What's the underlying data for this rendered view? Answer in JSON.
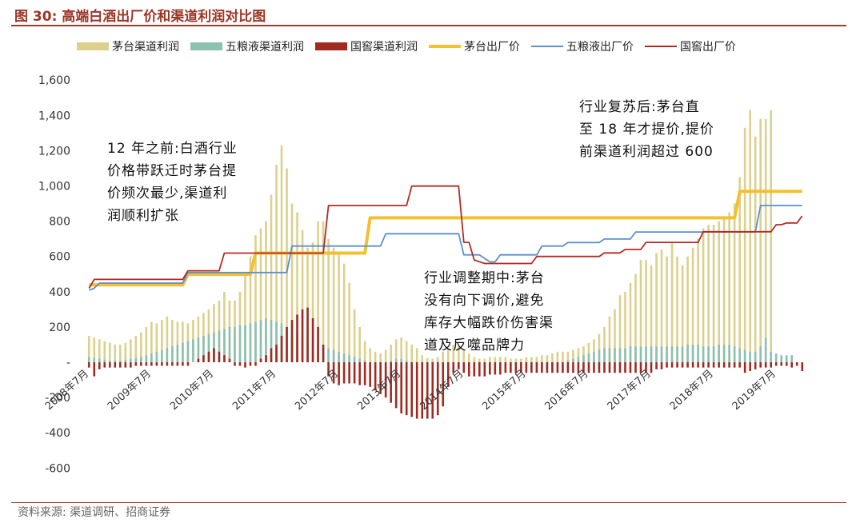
{
  "title": "图 30:  高端白酒出厂价和渠道利润对比图",
  "source": "资料来源:  渠道调研、招商证券",
  "colors": {
    "moutai_profit": "#dcd08d",
    "wuliangye_profit": "#8cc0b0",
    "guojiao_profit": "#a02a20",
    "moutai_price": "#f4c030",
    "wuliangye_price": "#5b8fd1",
    "guojiao_price": "#b42b23"
  },
  "annotations": [
    {
      "lines": [
        "12 年之前:白酒行业",
        "价格带跃迁时茅台提",
        "价频次最少,渠道利",
        "润顺利扩张"
      ]
    },
    {
      "lines": [
        "行业复苏后:茅台直",
        "至 18 年才提价,提价",
        "前渠道利润超过 600"
      ]
    },
    {
      "lines": [
        "行业调整期中:茅台",
        "没有向下调价,避免",
        "库存大幅跌价伤害渠",
        "道及反噬品牌力"
      ]
    }
  ],
  "chart_data": {
    "type": "bar+line",
    "ylim": [
      -600,
      1600
    ],
    "yticks": [
      -600,
      -400,
      -200,
      0,
      200,
      400,
      600,
      800,
      1000,
      1200,
      1400,
      1600
    ],
    "ytick_labels": [
      "-600",
      "-400",
      "-200",
      "-",
      "200",
      "400",
      "600",
      "800",
      "1,000",
      "1,200",
      "1,400",
      "1,600"
    ],
    "x_start": "2008-07",
    "x_end": "2019-12",
    "xtick_labels": [
      "2008年7月",
      "2009年7月",
      "2010年7月",
      "2011年7月",
      "2012年7月",
      "2013年7月",
      "2014年7月",
      "2015年7月",
      "2016年7月",
      "2017年7月",
      "2018年7月",
      "2019年7月"
    ],
    "legend": [
      "茅台渠道利润",
      "五粮液渠道利润",
      "国窖渠道利润",
      "茅台出厂价",
      "五粮液出厂价",
      "国窖出厂价"
    ],
    "series": [
      {
        "name": "茅台渠道利润",
        "kind": "bar",
        "values": [
          150,
          140,
          130,
          120,
          110,
          100,
          100,
          110,
          130,
          150,
          170,
          200,
          230,
          220,
          240,
          260,
          240,
          230,
          230,
          220,
          240,
          260,
          280,
          300,
          330,
          350,
          400,
          350,
          350,
          400,
          500,
          600,
          720,
          760,
          800,
          950,
          1120,
          1230,
          1100,
          900,
          850,
          750,
          650,
          680,
          800,
          800,
          700,
          650,
          620,
          560,
          450,
          300,
          200,
          120,
          80,
          60,
          50,
          70,
          100,
          130,
          140,
          120,
          100,
          80,
          40,
          25,
          20,
          30,
          60,
          80,
          100,
          90,
          70,
          50,
          30,
          20,
          20,
          30,
          30,
          30,
          30,
          20,
          20,
          20,
          30,
          30,
          30,
          40,
          40,
          50,
          60,
          60,
          60,
          70,
          80,
          90,
          110,
          130,
          160,
          200,
          260,
          300,
          380,
          400,
          450,
          500,
          580,
          580,
          550,
          620,
          640,
          600,
          680,
          600,
          550,
          600,
          650,
          700,
          760,
          780,
          780,
          800,
          820,
          850,
          900,
          1050,
          1330,
          1430,
          1280,
          1380,
          1380,
          1430
        ]
      },
      {
        "name": "五粮液渠道利润",
        "kind": "bar",
        "values": [
          30,
          25,
          20,
          15,
          10,
          10,
          10,
          15,
          20,
          25,
          30,
          40,
          50,
          60,
          70,
          80,
          90,
          100,
          110,
          120,
          130,
          140,
          150,
          160,
          170,
          180,
          190,
          200,
          200,
          210,
          210,
          220,
          230,
          240,
          250,
          240,
          230,
          220,
          200,
          180,
          160,
          140,
          120,
          110,
          100,
          90,
          80,
          70,
          60,
          50,
          40,
          30,
          20,
          10,
          0,
          -10,
          -10,
          0,
          10,
          20,
          20,
          10,
          0,
          -10,
          -20,
          -20,
          -10,
          0,
          -10,
          -20,
          -30,
          -20,
          -10,
          0,
          -10,
          -10,
          -10,
          -10,
          -10,
          -10,
          -10,
          -10,
          -10,
          -10,
          -10,
          -10,
          -10,
          -10,
          -40,
          -10,
          -10,
          0,
          10,
          20,
          30,
          40,
          50,
          60,
          70,
          80,
          80,
          80,
          80,
          80,
          90,
          90,
          90,
          90,
          90,
          90,
          90,
          90,
          90,
          90,
          90,
          100,
          100,
          100,
          90,
          90,
          90,
          100,
          100,
          100,
          90,
          80,
          70,
          60,
          60,
          90,
          140,
          60,
          50,
          40,
          40,
          40
        ]
      },
      {
        "name": "国窖渠道利润",
        "kind": "bar",
        "values": [
          -30,
          -80,
          -40,
          -30,
          -30,
          -30,
          -30,
          -30,
          -30,
          -20,
          -20,
          -20,
          -20,
          -20,
          -20,
          -20,
          -20,
          -20,
          -20,
          -20,
          0,
          20,
          40,
          60,
          80,
          60,
          40,
          20,
          -20,
          -20,
          -30,
          -20,
          -20,
          20,
          40,
          80,
          100,
          150,
          200,
          240,
          270,
          300,
          310,
          250,
          200,
          100,
          -80,
          -120,
          -130,
          -120,
          -120,
          -120,
          -130,
          -130,
          -140,
          -160,
          -180,
          -200,
          -230,
          -260,
          -290,
          -300,
          -310,
          -320,
          -320,
          -320,
          -320,
          -300,
          -250,
          -140,
          -60,
          -40,
          -60,
          -80,
          -80,
          -80,
          -80,
          -70,
          -70,
          -70,
          -60,
          -60,
          -60,
          -60,
          -60,
          -60,
          -60,
          -60,
          -60,
          -60,
          -60,
          -60,
          -60,
          -60,
          -60,
          -60,
          -60,
          -60,
          -60,
          -60,
          -60,
          -60,
          -60,
          -60,
          -60,
          -60,
          -60,
          -60,
          -60,
          -40,
          -40,
          -30,
          -30,
          -30,
          -30,
          -30,
          -30,
          -30,
          -30,
          -30,
          -30,
          -30,
          -30,
          -30,
          -30,
          -30,
          -60,
          -50,
          -40,
          -30,
          -30,
          -30,
          -20,
          -20,
          -20,
          -30,
          -20,
          -50
        ]
      },
      {
        "name": "茅台出厂价",
        "kind": "line",
        "points": [
          [
            0,
            439
          ],
          [
            18,
            439
          ],
          [
            19,
            499
          ],
          [
            31,
            499
          ],
          [
            32,
            619
          ],
          [
            53,
            619
          ],
          [
            54,
            819
          ],
          [
            124,
            819
          ],
          [
            125,
            969
          ],
          [
            137,
            969
          ]
        ]
      },
      {
        "name": "五粮液出厂价",
        "kind": "line",
        "points": [
          [
            0,
            409
          ],
          [
            1,
            420
          ],
          [
            2,
            449
          ],
          [
            18,
            449
          ],
          [
            19,
            509
          ],
          [
            38,
            509
          ],
          [
            39,
            659
          ],
          [
            56,
            659
          ],
          [
            57,
            729
          ],
          [
            71,
            729
          ],
          [
            72,
            609
          ],
          [
            75,
            609
          ],
          [
            76,
            589
          ],
          [
            77,
            569
          ],
          [
            78,
            569
          ],
          [
            79,
            609
          ],
          [
            86,
            609
          ],
          [
            87,
            659
          ],
          [
            91,
            659
          ],
          [
            92,
            679
          ],
          [
            98,
            679
          ],
          [
            99,
            699
          ],
          [
            104,
            699
          ],
          [
            105,
            739
          ],
          [
            117,
            739
          ],
          [
            118,
            739
          ],
          [
            127,
            739
          ],
          [
            128,
            739
          ],
          [
            129,
            889
          ],
          [
            137,
            889
          ]
        ]
      },
      {
        "name": "国窖出厂价",
        "kind": "line",
        "points": [
          [
            0,
            420
          ],
          [
            1,
            470
          ],
          [
            18,
            470
          ],
          [
            19,
            519
          ],
          [
            25,
            519
          ],
          [
            26,
            619
          ],
          [
            45,
            619
          ],
          [
            46,
            889
          ],
          [
            59,
            889
          ],
          [
            60,
            889
          ],
          [
            61,
            889
          ],
          [
            62,
            999
          ],
          [
            70,
            999
          ],
          [
            71,
            999
          ],
          [
            72,
            680
          ],
          [
            73,
            680
          ],
          [
            74,
            580
          ],
          [
            75,
            570
          ],
          [
            76,
            560
          ],
          [
            85,
            560
          ],
          [
            86,
            600
          ],
          [
            98,
            600
          ],
          [
            99,
            620
          ],
          [
            102,
            620
          ],
          [
            103,
            640
          ],
          [
            106,
            640
          ],
          [
            107,
            680
          ],
          [
            110,
            680
          ],
          [
            111,
            680
          ],
          [
            117,
            680
          ],
          [
            118,
            740
          ],
          [
            131,
            740
          ],
          [
            132,
            780
          ],
          [
            133,
            780
          ],
          [
            134,
            790
          ],
          [
            136,
            790
          ],
          [
            137,
            830
          ]
        ]
      }
    ]
  }
}
